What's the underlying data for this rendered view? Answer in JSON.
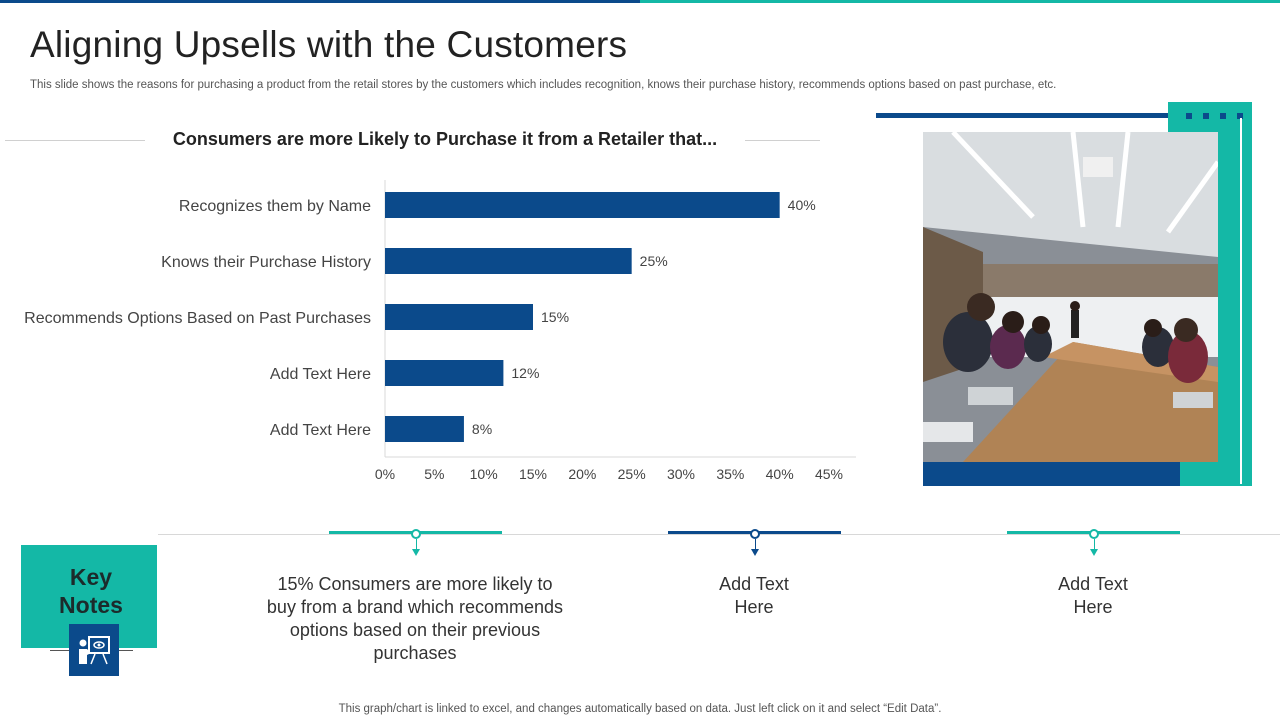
{
  "slide": {
    "title": "Aligning Upsells with the Customers",
    "subtitle": "This slide shows the reasons for purchasing a product from the retail stores by the customers which includes recognition, knows their purchase history, recommends options based on past purchase, etc.",
    "footer": "This graph/chart is linked to excel,  and changes automatically based on data. Just left click on it and select “Edit Data”."
  },
  "chart_data": {
    "type": "bar",
    "orientation": "horizontal",
    "title": "Consumers are more Likely to Purchase it from a Retailer that...",
    "categories": [
      "Recognizes them by Name",
      "Knows their Purchase History",
      "Recommends Options Based on Past Purchases",
      "Add Text Here",
      "Add Text Here"
    ],
    "values": [
      40,
      25,
      15,
      12,
      8
    ],
    "value_labels": [
      "40%",
      "25%",
      "15%",
      "12%",
      "8%"
    ],
    "xlim": [
      0,
      45
    ],
    "xticks": [
      "0%",
      "5%",
      "10%",
      "15%",
      "20%",
      "25%",
      "30%",
      "35%",
      "40%",
      "45%"
    ],
    "xlabel": "",
    "ylabel": "",
    "grid": false,
    "bar_color": "#0b4a8b"
  },
  "key_notes": {
    "title_line1": "Key",
    "title_line2": "Notes",
    "icon": "presentation-board-icon",
    "notes": [
      {
        "text": "15% Consumers are more likely to buy from a brand which recommends options based on their previous purchases",
        "color": "#14b8a6"
      },
      {
        "text": "Add Text Here",
        "color": "#0b4a8b"
      },
      {
        "text": "Add Text Here",
        "color": "#14b8a6"
      }
    ]
  },
  "colors": {
    "navy": "#0b4a8b",
    "teal": "#14b8a6"
  },
  "image": {
    "subject": "meeting-room-photo"
  }
}
